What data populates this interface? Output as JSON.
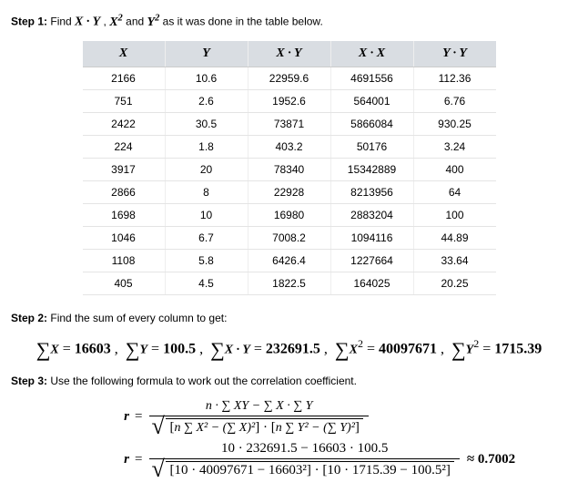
{
  "step1": {
    "label": "Step 1:",
    "text_a": "Find ",
    "expr1": "X · Y",
    "comma1": " , ",
    "expr2": "X",
    "sup2": "2",
    "and": " and ",
    "expr3": "Y",
    "sup3": "2",
    "text_b": " as it was done in the table below."
  },
  "table": {
    "headers": {
      "h1": "X",
      "h2": "Y",
      "h3": "X · Y",
      "h4": "X · X",
      "h5": "Y · Y"
    },
    "col_widths": {
      "c1": 90,
      "c2": 90,
      "c3": 90,
      "c4": 90,
      "c5": 90
    },
    "rows": [
      {
        "x": "2166",
        "y": "10.6",
        "xy": "22959.6",
        "xx": "4691556",
        "yy": "112.36"
      },
      {
        "x": "751",
        "y": "2.6",
        "xy": "1952.6",
        "xx": "564001",
        "yy": "6.76"
      },
      {
        "x": "2422",
        "y": "30.5",
        "xy": "73871",
        "xx": "5866084",
        "yy": "930.25"
      },
      {
        "x": "224",
        "y": "1.8",
        "xy": "403.2",
        "xx": "50176",
        "yy": "3.24"
      },
      {
        "x": "3917",
        "y": "20",
        "xy": "78340",
        "xx": "15342889",
        "yy": "400"
      },
      {
        "x": "2866",
        "y": "8",
        "xy": "22928",
        "xx": "8213956",
        "yy": "64"
      },
      {
        "x": "1698",
        "y": "10",
        "xy": "16980",
        "xx": "2883204",
        "yy": "100"
      },
      {
        "x": "1046",
        "y": "6.7",
        "xy": "7008.2",
        "xx": "1094116",
        "yy": "44.89"
      },
      {
        "x": "1108",
        "y": "5.8",
        "xy": "6426.4",
        "xx": "1227664",
        "yy": "33.64"
      },
      {
        "x": "405",
        "y": "4.5",
        "xy": "1822.5",
        "xx": "164025",
        "yy": "20.25"
      }
    ]
  },
  "step2": {
    "label": "Step 2:",
    "text": "Find the sum of every column to get:"
  },
  "sums": {
    "sX": "16603",
    "sY": "100.5",
    "sXY": "232691.5",
    "sX2": "40097671",
    "sY2": "1715.39"
  },
  "step3": {
    "label": "Step 3:",
    "text": "Use the following formula to work out the correlation coefficient."
  },
  "formula": {
    "num1": "n · ∑ XY − ∑ X · ∑ Y",
    "denA": "n ∑ X² − (∑ X)²",
    "denB": "n ∑ Y² − (∑ Y)²",
    "num2": "10 · 232691.5 − 16603 · 100.5",
    "den2A": "10 · 40097671 − 16603²",
    "den2B": "10 · 1715.39 − 100.5²",
    "approx": "≈ 0.7002",
    "r": "r",
    "eq": "="
  }
}
